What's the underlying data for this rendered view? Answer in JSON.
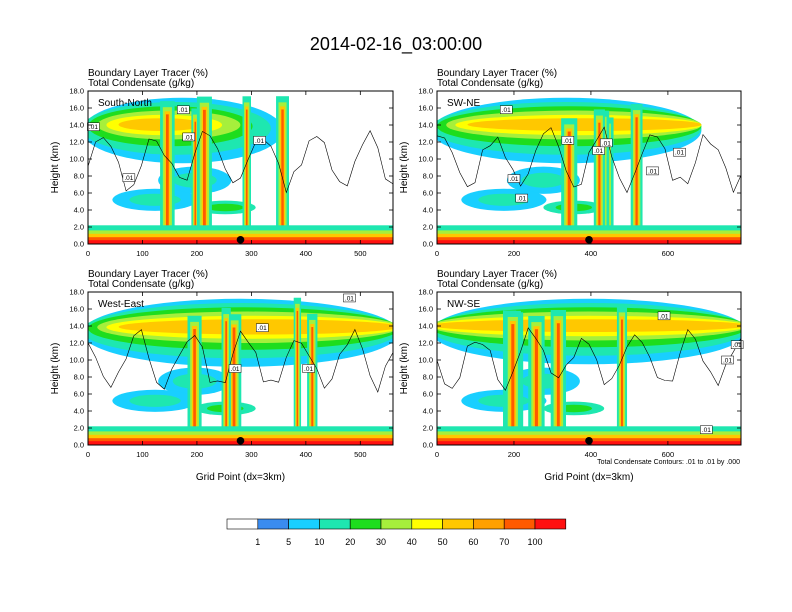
{
  "figure_title": "2014-02-16_03:00:00",
  "legend": {
    "labels": [
      "1",
      "5",
      "10",
      "20",
      "30",
      "40",
      "50",
      "60",
      "70",
      "100"
    ],
    "colors": [
      "#ffffff",
      "#3a8cf0",
      "#19cfff",
      "#1ee7b0",
      "#1edd1e",
      "#a6ef3c",
      "#ffff00",
      "#ffc800",
      "#ffa000",
      "#ff5a00",
      "#ff1010"
    ]
  },
  "contour_note": "Total Condensate Contours: .01 to .01 by .000",
  "contour_label": ".01",
  "chart_data": [
    {
      "type": "heatmap",
      "name": "South-North",
      "header": [
        "Boundary Layer Tracer    (%)",
        "Total Condensate    (g/kg)"
      ],
      "ylabel": "Height (km)",
      "xlabel": "",
      "yticks": [
        "0.0",
        "2.0",
        "4.0",
        "6.0",
        "8.0",
        "10.0",
        "12.0",
        "14.0",
        "16.0",
        "18.0"
      ],
      "ylim": [
        0,
        18
      ],
      "xlim": [
        0,
        560
      ],
      "xticks": [
        0,
        100,
        200,
        300,
        400,
        500
      ],
      "xticklabels": [
        "0",
        "100",
        "200",
        "300",
        "400",
        "500"
      ],
      "marker_x": 280,
      "contour_labels_km": [
        [
          10,
          13.8
        ],
        [
          175,
          15.8
        ],
        [
          185,
          12.6
        ],
        [
          315,
          12.2
        ],
        [
          75,
          7.8
        ]
      ]
    },
    {
      "type": "heatmap",
      "name": "SW-NE",
      "header": [
        "Boundary Layer Tracer    (%)",
        "Total Condensate    (g/kg)"
      ],
      "ylabel": "Height (km)",
      "xlabel": "",
      "yticks": [
        "0.0",
        "2.0",
        "4.0",
        "6.0",
        "8.0",
        "10.0",
        "12.0",
        "14.0",
        "16.0",
        "18.0"
      ],
      "ylim": [
        0,
        18
      ],
      "xlim": [
        0,
        790
      ],
      "xticks": [
        0,
        200,
        400,
        600
      ],
      "xticklabels": [
        "0",
        "200",
        "400",
        "600"
      ],
      "marker_x": 395,
      "contour_labels_km": [
        [
          180,
          15.8
        ],
        [
          340,
          12.2
        ],
        [
          420,
          11
        ],
        [
          440,
          11.9
        ],
        [
          630,
          10.8
        ],
        [
          560,
          8.6
        ],
        [
          200,
          7.7
        ],
        [
          220,
          5.4
        ]
      ]
    },
    {
      "type": "heatmap",
      "name": "West-East",
      "header": [
        "Boundary Layer Tracer    (%)",
        "Total Condensate    (g/kg)"
      ],
      "ylabel": "Height (km)",
      "xlabel": "Grid Point (dx=3km)",
      "yticks": [
        "0.0",
        "2.0",
        "4.0",
        "6.0",
        "8.0",
        "10.0",
        "12.0",
        "14.0",
        "16.0",
        "18.0"
      ],
      "ylim": [
        0,
        18
      ],
      "xlim": [
        0,
        560
      ],
      "xticks": [
        0,
        100,
        200,
        300,
        400,
        500
      ],
      "xticklabels": [
        "0",
        "100",
        "200",
        "300",
        "400",
        "500"
      ],
      "marker_x": 280,
      "contour_labels_km": [
        [
          480,
          17.3
        ],
        [
          320,
          13.8
        ],
        [
          270,
          9
        ],
        [
          405,
          9
        ]
      ]
    },
    {
      "type": "heatmap",
      "name": "NW-SE",
      "header": [
        "Boundary Layer Tracer    (%)",
        "Total Condensate    (g/kg)"
      ],
      "ylabel": "Height (km)",
      "xlabel": "Grid Point (dx=3km)",
      "yticks": [
        "0.0",
        "2.0",
        "4.0",
        "6.0",
        "8.0",
        "10.0",
        "12.0",
        "14.0",
        "16.0",
        "18.0"
      ],
      "ylim": [
        0,
        18
      ],
      "xlim": [
        0,
        790
      ],
      "xticks": [
        0,
        200,
        400,
        600
      ],
      "xticklabels": [
        "0",
        "200",
        "400",
        "600"
      ],
      "marker_x": 395,
      "contour_labels_km": [
        [
          590,
          15.2
        ],
        [
          780,
          11.8
        ],
        [
          755,
          10
        ],
        [
          700,
          1.8
        ]
      ]
    }
  ]
}
